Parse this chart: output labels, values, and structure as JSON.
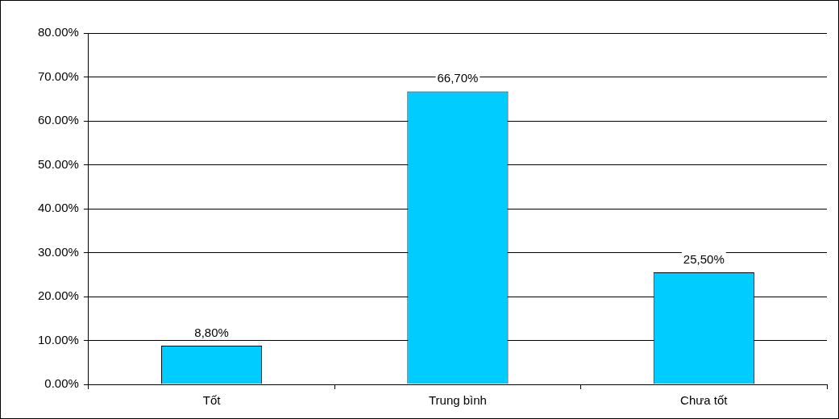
{
  "chart_data": {
    "type": "bar",
    "categories": [
      "Tốt",
      "Trung bình",
      "Chưa tốt"
    ],
    "values": [
      8.8,
      66.7,
      25.5
    ],
    "value_labels": [
      "8,80%",
      "66,70%",
      "25,50%"
    ],
    "color": "#00ccff",
    "ylim": [
      0,
      80
    ],
    "yticks": [
      {
        "value": 0,
        "label": "0.00%"
      },
      {
        "value": 10,
        "label": "10.00%"
      },
      {
        "value": 20,
        "label": "20.00%"
      },
      {
        "value": 30,
        "label": "30.00%"
      },
      {
        "value": 40,
        "label": "40.00%"
      },
      {
        "value": 50,
        "label": "50.00%"
      },
      {
        "value": 60,
        "label": "60.00%"
      },
      {
        "value": 70,
        "label": "70.00%"
      },
      {
        "value": 80,
        "label": "80.00%"
      }
    ],
    "grid": "y",
    "legend": false
  }
}
